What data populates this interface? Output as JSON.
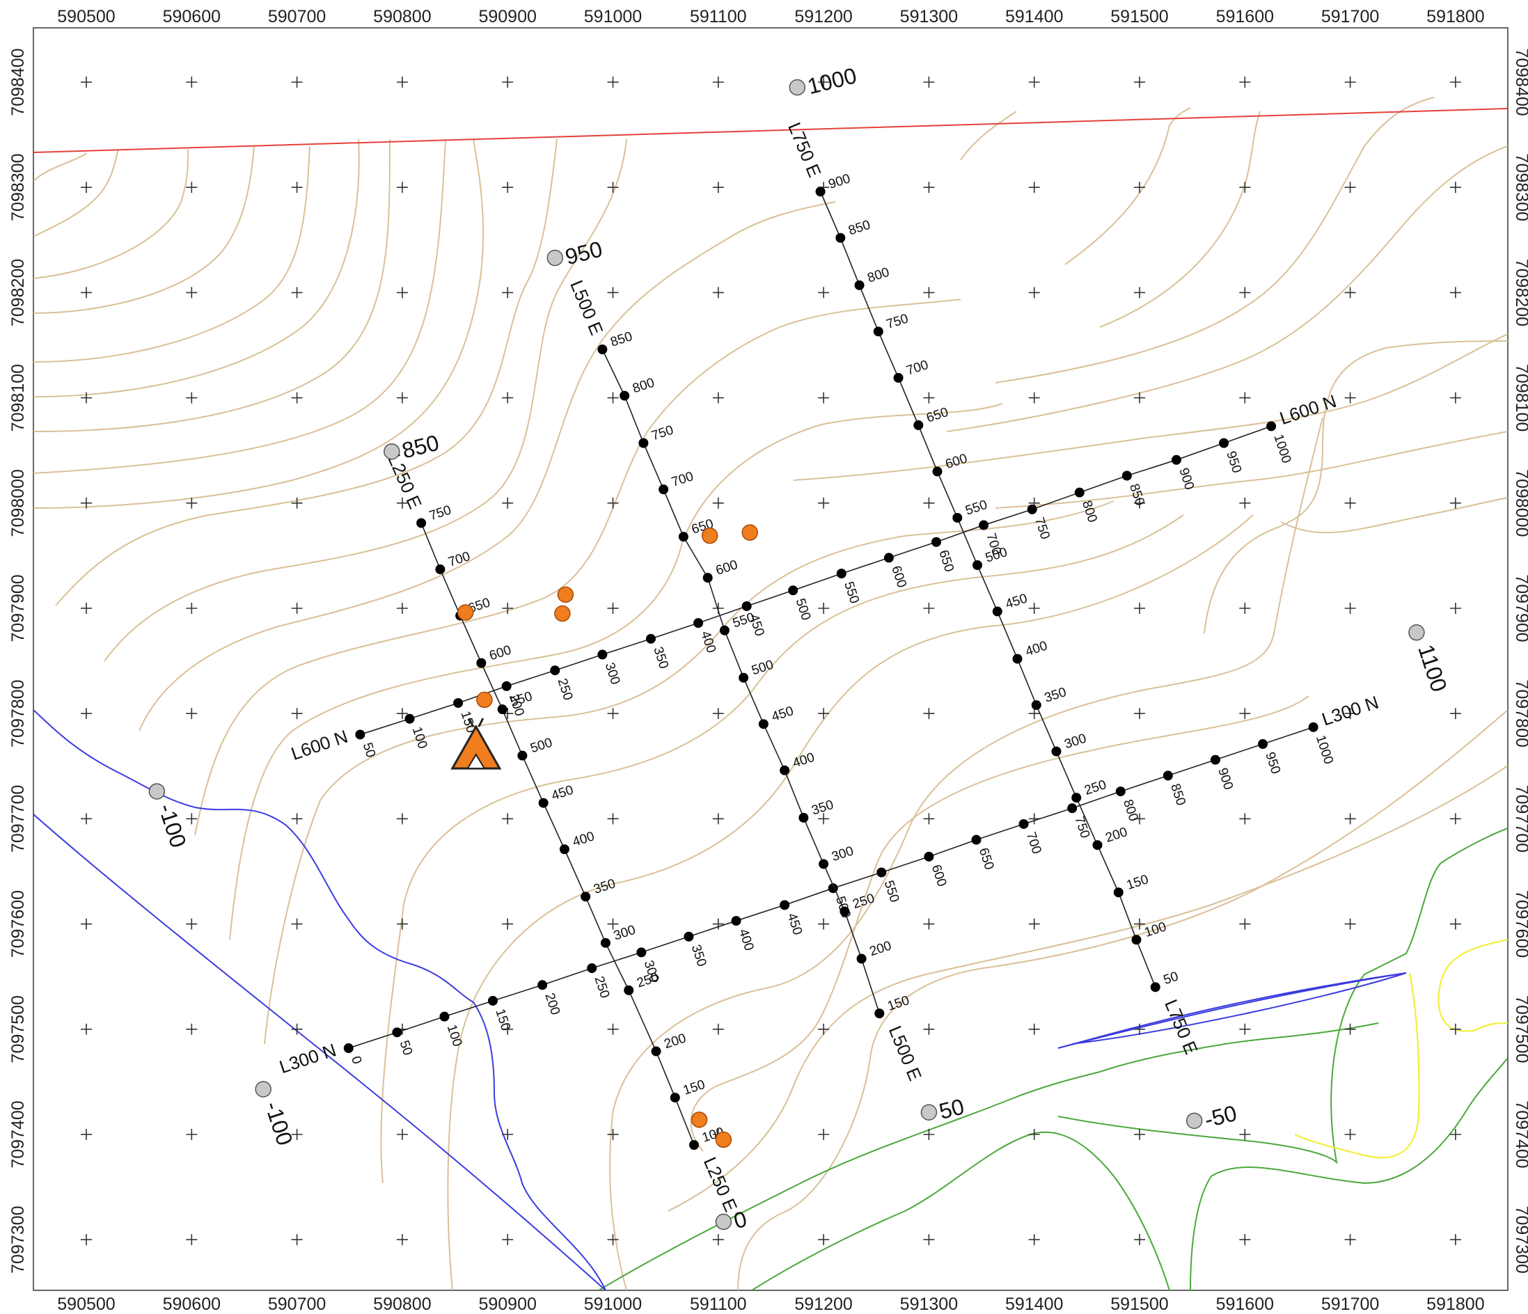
{
  "map": {
    "x_ticks": [
      "590500",
      "590600",
      "590700",
      "590800",
      "590900",
      "591000",
      "591100",
      "591200",
      "591300",
      "591400",
      "591500",
      "591600",
      "591700",
      "591800"
    ],
    "y_ticks": [
      "7098400",
      "7098300",
      "7098200",
      "7098100",
      "7098000",
      "7097900",
      "7097800",
      "7097700",
      "7097600",
      "7097500",
      "7097400",
      "7097300"
    ],
    "x_label_values": [
      590500,
      590600,
      590700,
      590800,
      590900,
      591000,
      591100,
      591200,
      591300,
      591400,
      591500,
      591600,
      591700,
      591800
    ],
    "y_label_values": [
      7098400,
      7098300,
      7098200,
      7098100,
      7098000,
      7097900,
      7097800,
      7097700,
      7097600,
      7097500,
      7097400,
      7097300
    ],
    "extent": {
      "xmin": 590450,
      "xmax": 591850,
      "ymin": 7097255,
      "ymax": 7098455
    }
  },
  "grid_lines": [
    {
      "name": "L600 N",
      "label_end": "start",
      "stations": [
        {
          "s": "50",
          "e": 590760,
          "n": 7097780
        },
        {
          "s": "100",
          "e": 590807,
          "n": 7097795
        },
        {
          "s": "150",
          "e": 590853,
          "n": 7097810
        },
        {
          "s": "200",
          "e": 590899,
          "n": 7097826
        },
        {
          "s": "250",
          "e": 590945,
          "n": 7097841
        },
        {
          "s": "300",
          "e": 590990,
          "n": 7097856
        },
        {
          "s": "350",
          "e": 591036,
          "n": 7097871
        },
        {
          "s": "400",
          "e": 591081,
          "n": 7097886
        },
        {
          "s": "450",
          "e": 591127,
          "n": 7097902
        },
        {
          "s": "500",
          "e": 591171,
          "n": 7097917
        },
        {
          "s": "550",
          "e": 591217,
          "n": 7097933
        },
        {
          "s": "600",
          "e": 591262,
          "n": 7097948
        },
        {
          "s": "650",
          "e": 591307,
          "n": 7097963
        },
        {
          "s": "700",
          "e": 591352,
          "n": 7097979
        },
        {
          "s": "750",
          "e": 591398,
          "n": 7097994
        },
        {
          "s": "800",
          "e": 591443,
          "n": 7098010
        },
        {
          "s": "850",
          "e": 591488,
          "n": 7098026
        },
        {
          "s": "900",
          "e": 591535,
          "n": 7098041
        },
        {
          "s": "950",
          "e": 591580,
          "n": 7098057
        },
        {
          "s": "1000",
          "e": 591625,
          "n": 7098073
        }
      ]
    },
    {
      "name": "L300 N",
      "label_end": "start",
      "stations": [
        {
          "s": "0",
          "e": 590749,
          "n": 7097482
        },
        {
          "s": "50",
          "e": 590795,
          "n": 7097497
        },
        {
          "s": "100",
          "e": 590840,
          "n": 7097512
        },
        {
          "s": "150",
          "e": 590886,
          "n": 7097527
        },
        {
          "s": "200",
          "e": 590933,
          "n": 7097542
        },
        {
          "s": "250",
          "e": 590980,
          "n": 7097558
        },
        {
          "s": "300",
          "e": 591027,
          "n": 7097573
        },
        {
          "s": "350",
          "e": 591072,
          "n": 7097588
        },
        {
          "s": "400",
          "e": 591117,
          "n": 7097603
        },
        {
          "s": "450",
          "e": 591163,
          "n": 7097618
        },
        {
          "s": "500",
          "e": 591209,
          "n": 7097634
        },
        {
          "s": "550",
          "e": 591255,
          "n": 7097649
        },
        {
          "s": "600",
          "e": 591300,
          "n": 7097664
        },
        {
          "s": "650",
          "e": 591345,
          "n": 7097680
        },
        {
          "s": "700",
          "e": 591390,
          "n": 7097695
        },
        {
          "s": "750",
          "e": 591436,
          "n": 7097710
        },
        {
          "s": "800",
          "e": 591482,
          "n": 7097726
        },
        {
          "s": "850",
          "e": 591527,
          "n": 7097741
        },
        {
          "s": "900",
          "e": 591572,
          "n": 7097756
        },
        {
          "s": "950",
          "e": 591617,
          "n": 7097771
        },
        {
          "s": "1000",
          "e": 591665,
          "n": 7097787
        }
      ]
    },
    {
      "name": "L250 E",
      "label_end": "both",
      "stations": [
        {
          "s": "100",
          "e": 591077,
          "n": 7097390
        },
        {
          "s": "150",
          "e": 591059,
          "n": 7097435
        },
        {
          "s": "200",
          "e": 591041,
          "n": 7097479
        },
        {
          "s": "250",
          "e": 591015,
          "n": 7097537
        },
        {
          "s": "300",
          "e": 590993,
          "n": 7097582
        },
        {
          "s": "350",
          "e": 590974,
          "n": 7097626
        },
        {
          "s": "400",
          "e": 590954,
          "n": 7097671
        },
        {
          "s": "450",
          "e": 590934,
          "n": 7097715
        },
        {
          "s": "500",
          "e": 590914,
          "n": 7097760
        },
        {
          "s": "550",
          "e": 590895,
          "n": 7097804
        },
        {
          "s": "600",
          "e": 590875,
          "n": 7097848
        },
        {
          "s": "650",
          "e": 590855,
          "n": 7097893
        },
        {
          "s": "700",
          "e": 590836,
          "n": 7097937
        },
        {
          "s": "750",
          "e": 590818,
          "n": 7097981
        }
      ]
    },
    {
      "name": "L500 E",
      "label_end": "both",
      "stations": [
        {
          "s": "150",
          "e": 591253,
          "n": 7097515
        },
        {
          "s": "200",
          "e": 591236,
          "n": 7097567
        },
        {
          "s": "250",
          "e": 591220,
          "n": 7097612
        },
        {
          "s": "300",
          "e": 591200,
          "n": 7097657
        },
        {
          "s": "350",
          "e": 591181,
          "n": 7097701
        },
        {
          "s": "400",
          "e": 591163,
          "n": 7097746
        },
        {
          "s": "450",
          "e": 591143,
          "n": 7097790
        },
        {
          "s": "500",
          "e": 591124,
          "n": 7097834
        },
        {
          "s": "550",
          "e": 591106,
          "n": 7097879
        },
        {
          "s": "600",
          "e": 591090,
          "n": 7097929
        },
        {
          "s": "650",
          "e": 591067,
          "n": 7097968
        },
        {
          "s": "700",
          "e": 591048,
          "n": 7098013
        },
        {
          "s": "750",
          "e": 591029,
          "n": 7098057
        },
        {
          "s": "800",
          "e": 591011,
          "n": 7098102
        },
        {
          "s": "850",
          "e": 590990,
          "n": 7098146
        }
      ]
    },
    {
      "name": "L750 E",
      "label_end": "both",
      "stations": [
        {
          "s": "50",
          "e": 591515,
          "n": 7097540
        },
        {
          "s": "100",
          "e": 591497,
          "n": 7097585
        },
        {
          "s": "150",
          "e": 591480,
          "n": 7097630
        },
        {
          "s": "200",
          "e": 591460,
          "n": 7097675
        },
        {
          "s": "250",
          "e": 591440,
          "n": 7097720
        },
        {
          "s": "300",
          "e": 591421,
          "n": 7097764
        },
        {
          "s": "350",
          "e": 591402,
          "n": 7097808
        },
        {
          "s": "400",
          "e": 591384,
          "n": 7097852
        },
        {
          "s": "450",
          "e": 591365,
          "n": 7097897
        },
        {
          "s": "500",
          "e": 591346,
          "n": 7097941
        },
        {
          "s": "550",
          "e": 591327,
          "n": 7097986
        },
        {
          "s": "600",
          "e": 591308,
          "n": 7098030
        },
        {
          "s": "650",
          "e": 591290,
          "n": 7098074
        },
        {
          "s": "700",
          "e": 591271,
          "n": 7098119
        },
        {
          "s": "750",
          "e": 591252,
          "n": 7098163
        },
        {
          "s": "800",
          "e": 591234,
          "n": 7098207
        },
        {
          "s": "850",
          "e": 591216,
          "n": 7098252
        },
        {
          "s": "900",
          "e": 591197,
          "n": 7098296
        }
      ]
    }
  ],
  "contour_labels": [
    {
      "text": "1000",
      "e": 591175,
      "n": 7098395
    },
    {
      "text": "950",
      "e": 590945,
      "n": 7098233
    },
    {
      "text": "850",
      "e": 590790,
      "n": 7098049
    },
    {
      "text": "1100",
      "e": 591763,
      "n": 7097877
    },
    {
      "text": "-100",
      "e": 590567,
      "n": 7097726
    },
    {
      "text": "-100",
      "e": 590668,
      "n": 7097443
    },
    {
      "text": "50",
      "e": 591300,
      "n": 7097421
    },
    {
      "text": "-50",
      "e": 591552,
      "n": 7097413
    },
    {
      "text": "0",
      "e": 591105,
      "n": 7097317
    }
  ],
  "samples": [
    {
      "e": 590860,
      "n": 7097896
    },
    {
      "e": 590878,
      "n": 7097813
    },
    {
      "e": 590952,
      "n": 7097895
    },
    {
      "e": 590955,
      "n": 7097913
    },
    {
      "e": 591092,
      "n": 7097969
    },
    {
      "e": 591130,
      "n": 7097972
    },
    {
      "e": 591082,
      "n": 7097414
    },
    {
      "e": 591105,
      "n": 7097395
    }
  ],
  "camp": {
    "icon": "camp-tent-icon",
    "e": 590870,
    "n": 7097765,
    "color": "#f07d1e"
  },
  "colors": {
    "contour": "#d9c097",
    "creek": "#3b3be0",
    "low_contour": "#4aa83a",
    "highlight": "#f2ef3a",
    "boundary": "#e3413a",
    "sample": "#f07d1e",
    "label_marker": "#c8c8c8"
  }
}
